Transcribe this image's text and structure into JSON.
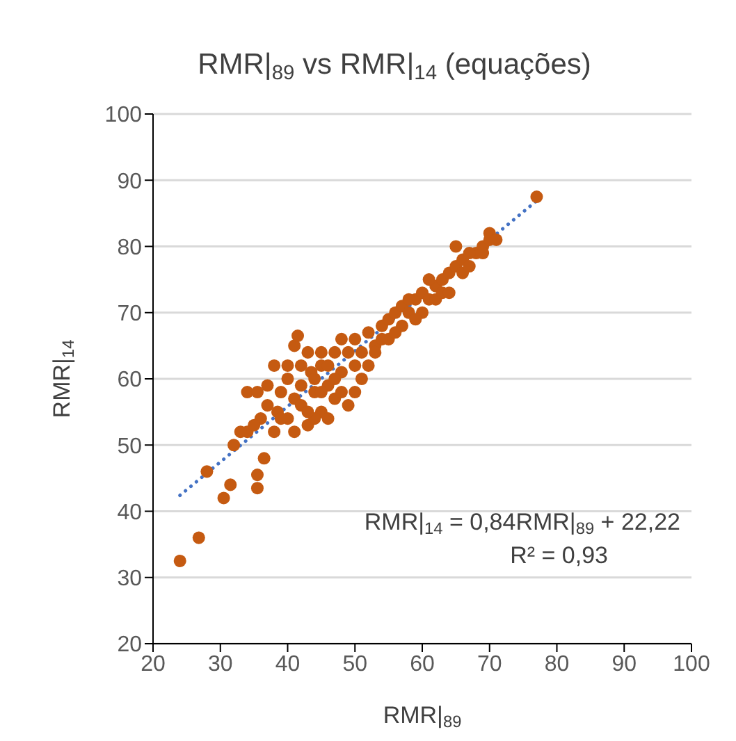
{
  "chart_data": {
    "type": "scatter",
    "title": "RMR|$_{89}$ vs RMR|$_{14}$ (equações)",
    "xlabel": "RMR|$_{89}$",
    "ylabel": "RMR|$_{14}$",
    "xlim": [
      20,
      100
    ],
    "xticks": [
      20,
      30,
      40,
      50,
      60,
      70,
      80,
      90,
      100
    ],
    "ylim": [
      20,
      100
    ],
    "yticks": [
      20,
      30,
      40,
      50,
      60,
      70,
      80,
      90,
      100
    ],
    "grid": "y",
    "marker": "circle",
    "annotations": [
      "RMR|$_{14}$ = 0,84RMR|$_{89}$ + 22,22",
      "R² = 0,93"
    ],
    "series": [
      {
        "color": "#c55a11",
        "x": [
          24,
          26.8,
          30.5,
          31.5,
          28,
          32,
          35.5,
          35.5,
          36.5,
          34,
          34,
          35.5,
          38,
          38.5,
          40,
          41,
          41,
          41.5,
          43,
          43.5,
          44,
          42,
          43,
          45,
          46,
          47,
          46,
          45,
          47,
          49,
          48,
          50,
          51,
          52,
          50,
          48,
          49,
          44,
          40,
          39,
          38,
          37,
          42,
          45,
          47,
          53,
          54,
          55,
          56,
          57,
          55,
          57,
          58,
          59,
          60,
          61,
          62,
          60,
          63,
          64,
          65,
          66,
          65,
          66,
          67,
          68,
          69,
          70,
          70,
          71,
          77,
          53,
          51,
          44,
          42,
          46,
          48,
          56,
          58,
          62,
          36,
          37,
          39,
          41,
          43,
          50,
          52,
          54,
          59,
          61,
          63,
          64,
          67,
          69,
          45,
          40,
          35,
          33
        ],
        "values": [
          32.5,
          36,
          42,
          44,
          46,
          50,
          43.5,
          45.5,
          48,
          52,
          58,
          58,
          52,
          55,
          54,
          57,
          65,
          66.5,
          64,
          61,
          60,
          56,
          53,
          55,
          54,
          57,
          59,
          62,
          64,
          64,
          61,
          62,
          64,
          67,
          66,
          58,
          56,
          58,
          60,
          58,
          62,
          56,
          59,
          58,
          60,
          65,
          68,
          69,
          70,
          71,
          66,
          68,
          70,
          72,
          73,
          72,
          74,
          70,
          75,
          76,
          77,
          76,
          80,
          78,
          77,
          79,
          80,
          82,
          81,
          81,
          87.5,
          64,
          60,
          54,
          62,
          62,
          66,
          67,
          72,
          72,
          54,
          59,
          54,
          52,
          55,
          58,
          62,
          66,
          69,
          75,
          73,
          73,
          79,
          79,
          64,
          62,
          53,
          52
        ]
      },
      {
        "type": "line",
        "color": "#4472c4",
        "line_style": "dotted",
        "marker": "none",
        "x": [
          24,
          77
        ],
        "values": [
          42.4,
          86.9
        ]
      }
    ]
  }
}
